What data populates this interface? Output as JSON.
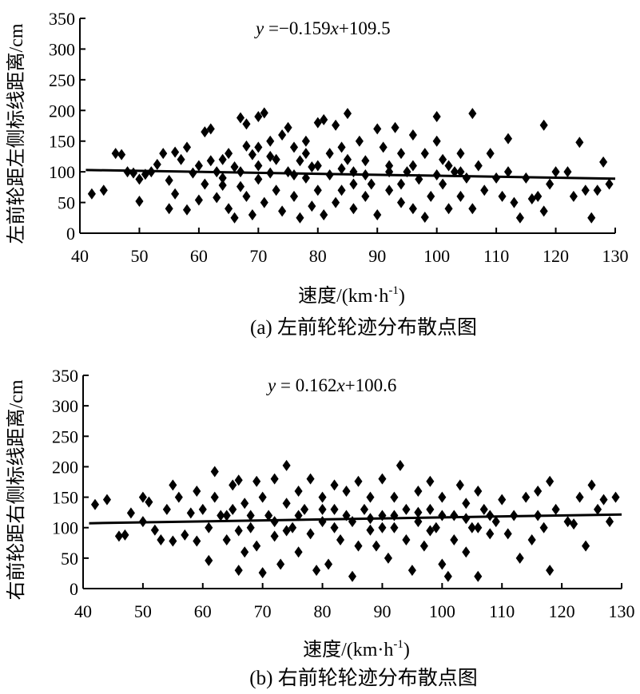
{
  "chart_data": [
    {
      "id": "a",
      "type": "scatter",
      "caption": "(a) 左前轮轮迹分布散点图",
      "equation_prefix": "y",
      "equation_rest": " =−0.159",
      "equation_var": "x",
      "equation_tail": "+109.5",
      "xlabel": "速度/(km·h",
      "xlabel_sup": "-1",
      "xlabel_end": ")",
      "ylabel": "左前轮距左侧标线距离/cm",
      "xlim": [
        40,
        130
      ],
      "ylim": [
        0,
        350
      ],
      "xticks": [
        "40",
        "50",
        "60",
        "70",
        "80",
        "90",
        "100",
        "110",
        "120",
        "130"
      ],
      "yticks": [
        "0",
        "50",
        "100",
        "150",
        "200",
        "250",
        "300",
        "350"
      ],
      "trend": {
        "slope": -0.159,
        "intercept": 109.5,
        "x": [
          41,
          130
        ]
      },
      "points": [
        [
          42,
          64
        ],
        [
          44,
          70
        ],
        [
          46,
          130
        ],
        [
          47,
          128
        ],
        [
          48,
          100
        ],
        [
          49,
          98
        ],
        [
          50,
          52
        ],
        [
          50,
          88
        ],
        [
          51,
          96
        ],
        [
          52,
          100
        ],
        [
          53,
          112
        ],
        [
          54,
          130
        ],
        [
          55,
          40
        ],
        [
          55,
          86
        ],
        [
          56,
          64
        ],
        [
          56,
          132
        ],
        [
          57,
          120
        ],
        [
          58,
          38
        ],
        [
          58,
          140
        ],
        [
          59,
          98
        ],
        [
          60,
          110
        ],
        [
          60,
          54
        ],
        [
          61,
          165
        ],
        [
          61,
          80
        ],
        [
          62,
          170
        ],
        [
          62,
          118
        ],
        [
          63,
          100
        ],
        [
          63,
          58
        ],
        [
          64,
          120
        ],
        [
          64,
          90
        ],
        [
          65,
          130
        ],
        [
          65,
          40
        ],
        [
          66,
          25
        ],
        [
          66,
          108
        ],
        [
          67,
          188
        ],
        [
          67,
          76
        ],
        [
          68,
          178
        ],
        [
          68,
          142
        ],
        [
          68,
          60
        ],
        [
          69,
          30
        ],
        [
          69,
          128
        ],
        [
          70,
          110
        ],
        [
          70,
          88
        ],
        [
          70,
          190
        ],
        [
          71,
          196
        ],
        [
          71,
          50
        ],
        [
          72,
          150
        ],
        [
          72,
          98
        ],
        [
          73,
          120
        ],
        [
          73,
          70
        ],
        [
          74,
          160
        ],
        [
          74,
          36
        ],
        [
          75,
          100
        ],
        [
          75,
          172
        ],
        [
          76,
          140
        ],
        [
          76,
          60
        ],
        [
          77,
          25
        ],
        [
          77,
          118
        ],
        [
          78,
          90
        ],
        [
          78,
          150
        ],
        [
          79,
          44
        ],
        [
          79,
          108
        ],
        [
          80,
          180
        ],
        [
          80,
          70
        ],
        [
          81,
          185
        ],
        [
          81,
          30
        ],
        [
          82,
          130
        ],
        [
          82,
          95
        ],
        [
          83,
          176
        ],
        [
          83,
          50
        ],
        [
          84,
          140
        ],
        [
          84,
          70
        ],
        [
          85,
          195
        ],
        [
          85,
          120
        ],
        [
          86,
          100
        ],
        [
          86,
          40
        ],
        [
          87,
          150
        ],
        [
          88,
          60
        ],
        [
          88,
          118
        ],
        [
          89,
          80
        ],
        [
          90,
          170
        ],
        [
          90,
          30
        ],
        [
          91,
          140
        ],
        [
          92,
          110
        ],
        [
          92,
          70
        ],
        [
          93,
          172
        ],
        [
          94,
          50
        ],
        [
          94,
          130
        ],
        [
          95,
          100
        ],
        [
          96,
          160
        ],
        [
          96,
          40
        ],
        [
          97,
          88
        ],
        [
          98,
          130
        ],
        [
          98,
          26
        ],
        [
          99,
          60
        ],
        [
          100,
          150
        ],
        [
          100,
          190
        ],
        [
          101,
          80
        ],
        [
          101,
          120
        ],
        [
          102,
          40
        ],
        [
          103,
          100
        ],
        [
          104,
          130
        ],
        [
          104,
          60
        ],
        [
          105,
          90
        ],
        [
          106,
          195
        ],
        [
          106,
          40
        ],
        [
          107,
          110
        ],
        [
          108,
          70
        ],
        [
          109,
          130
        ],
        [
          110,
          90
        ],
        [
          111,
          60
        ],
        [
          112,
          100
        ],
        [
          112,
          154
        ],
        [
          113,
          50
        ],
        [
          114,
          25
        ],
        [
          115,
          90
        ],
        [
          116,
          56
        ],
        [
          117,
          60
        ],
        [
          118,
          176
        ],
        [
          118,
          36
        ],
        [
          119,
          80
        ],
        [
          120,
          100
        ],
        [
          122,
          100
        ],
        [
          123,
          60
        ],
        [
          124,
          148
        ],
        [
          125,
          70
        ],
        [
          126,
          25
        ],
        [
          127,
          70
        ],
        [
          128,
          116
        ],
        [
          129,
          80
        ],
        [
          67,
          100
        ],
        [
          72,
          125
        ],
        [
          76,
          95
        ],
        [
          80,
          110
        ],
        [
          84,
          105
        ],
        [
          88,
          95
        ],
        [
          92,
          100
        ],
        [
          96,
          110
        ],
        [
          100,
          95
        ],
        [
          104,
          100
        ],
        [
          64,
          78
        ],
        [
          70,
          140
        ],
        [
          78,
          130
        ],
        [
          86,
          80
        ],
        [
          94,
          80
        ],
        [
          102,
          110
        ]
      ]
    },
    {
      "id": "b",
      "type": "scatter",
      "caption": "(b) 右前轮轮迹分布散点图",
      "equation_prefix": "y",
      "equation_rest": " = 0.162",
      "equation_var": "x",
      "equation_tail": "+100.6",
      "xlabel": "速度/(km·h",
      "xlabel_sup": "-1",
      "xlabel_end": ")",
      "ylabel": "右前轮距右侧标线距离/cm",
      "xlim": [
        40,
        130
      ],
      "ylim": [
        0,
        350
      ],
      "xticks": [
        "40",
        "50",
        "60",
        "70",
        "80",
        "90",
        "100",
        "110",
        "120",
        "130"
      ],
      "yticks": [
        "0",
        "50",
        "100",
        "150",
        "200",
        "250",
        "300",
        "350"
      ],
      "trend": {
        "slope": 0.162,
        "intercept": 100.6,
        "x": [
          41,
          130
        ]
      },
      "points": [
        [
          42,
          138
        ],
        [
          44,
          146
        ],
        [
          46,
          86
        ],
        [
          47,
          88
        ],
        [
          48,
          124
        ],
        [
          50,
          150
        ],
        [
          50,
          110
        ],
        [
          51,
          142
        ],
        [
          52,
          96
        ],
        [
          53,
          80
        ],
        [
          54,
          130
        ],
        [
          55,
          170
        ],
        [
          55,
          78
        ],
        [
          56,
          150
        ],
        [
          57,
          88
        ],
        [
          58,
          124
        ],
        [
          59,
          160
        ],
        [
          59,
          78
        ],
        [
          60,
          130
        ],
        [
          61,
          46
        ],
        [
          61,
          100
        ],
        [
          62,
          192
        ],
        [
          62,
          150
        ],
        [
          63,
          120
        ],
        [
          64,
          80
        ],
        [
          65,
          170
        ],
        [
          65,
          130
        ],
        [
          66,
          178
        ],
        [
          66,
          30
        ],
        [
          67,
          60
        ],
        [
          67,
          140
        ],
        [
          68,
          100
        ],
        [
          69,
          176
        ],
        [
          69,
          70
        ],
        [
          70,
          150
        ],
        [
          70,
          26
        ],
        [
          71,
          120
        ],
        [
          72,
          180
        ],
        [
          72,
          86
        ],
        [
          73,
          40
        ],
        [
          74,
          202
        ],
        [
          74,
          140
        ],
        [
          75,
          100
        ],
        [
          76,
          160
        ],
        [
          76,
          60
        ],
        [
          77,
          130
        ],
        [
          78,
          180
        ],
        [
          78,
          90
        ],
        [
          79,
          30
        ],
        [
          80,
          150
        ],
        [
          80,
          110
        ],
        [
          81,
          40
        ],
        [
          82,
          170
        ],
        [
          82,
          130
        ],
        [
          83,
          80
        ],
        [
          84,
          160
        ],
        [
          85,
          110
        ],
        [
          85,
          20
        ],
        [
          86,
          176
        ],
        [
          86,
          70
        ],
        [
          87,
          130
        ],
        [
          88,
          150
        ],
        [
          88,
          96
        ],
        [
          89,
          70
        ],
        [
          90,
          180
        ],
        [
          90,
          120
        ],
        [
          91,
          50
        ],
        [
          92,
          150
        ],
        [
          92,
          100
        ],
        [
          93,
          202
        ],
        [
          94,
          80
        ],
        [
          94,
          130
        ],
        [
          95,
          30
        ],
        [
          96,
          160
        ],
        [
          96,
          110
        ],
        [
          97,
          70
        ],
        [
          98,
          176
        ],
        [
          98,
          130
        ],
        [
          99,
          100
        ],
        [
          100,
          40
        ],
        [
          100,
          150
        ],
        [
          101,
          20
        ],
        [
          102,
          120
        ],
        [
          102,
          80
        ],
        [
          103,
          170
        ],
        [
          104,
          140
        ],
        [
          104,
          60
        ],
        [
          105,
          100
        ],
        [
          106,
          160
        ],
        [
          106,
          20
        ],
        [
          107,
          130
        ],
        [
          108,
          90
        ],
        [
          109,
          110
        ],
        [
          110,
          146
        ],
        [
          111,
          90
        ],
        [
          112,
          120
        ],
        [
          113,
          50
        ],
        [
          114,
          150
        ],
        [
          115,
          80
        ],
        [
          116,
          160
        ],
        [
          116,
          120
        ],
        [
          117,
          100
        ],
        [
          118,
          176
        ],
        [
          118,
          30
        ],
        [
          119,
          130
        ],
        [
          121,
          110
        ],
        [
          122,
          106
        ],
        [
          123,
          150
        ],
        [
          124,
          70
        ],
        [
          125,
          170
        ],
        [
          126,
          130
        ],
        [
          127,
          146
        ],
        [
          128,
          110
        ],
        [
          129,
          150
        ],
        [
          64,
          120
        ],
        [
          68,
          120
        ],
        [
          72,
          110
        ],
        [
          76,
          120
        ],
        [
          80,
          130
        ],
        [
          84,
          120
        ],
        [
          88,
          115
        ],
        [
          92,
          120
        ],
        [
          96,
          125
        ],
        [
          100,
          120
        ],
        [
          104,
          115
        ],
        [
          108,
          120
        ],
        [
          66,
          95
        ],
        [
          74,
          95
        ],
        [
          82,
          100
        ],
        [
          90,
          100
        ],
        [
          98,
          95
        ],
        [
          106,
          100
        ]
      ]
    }
  ]
}
